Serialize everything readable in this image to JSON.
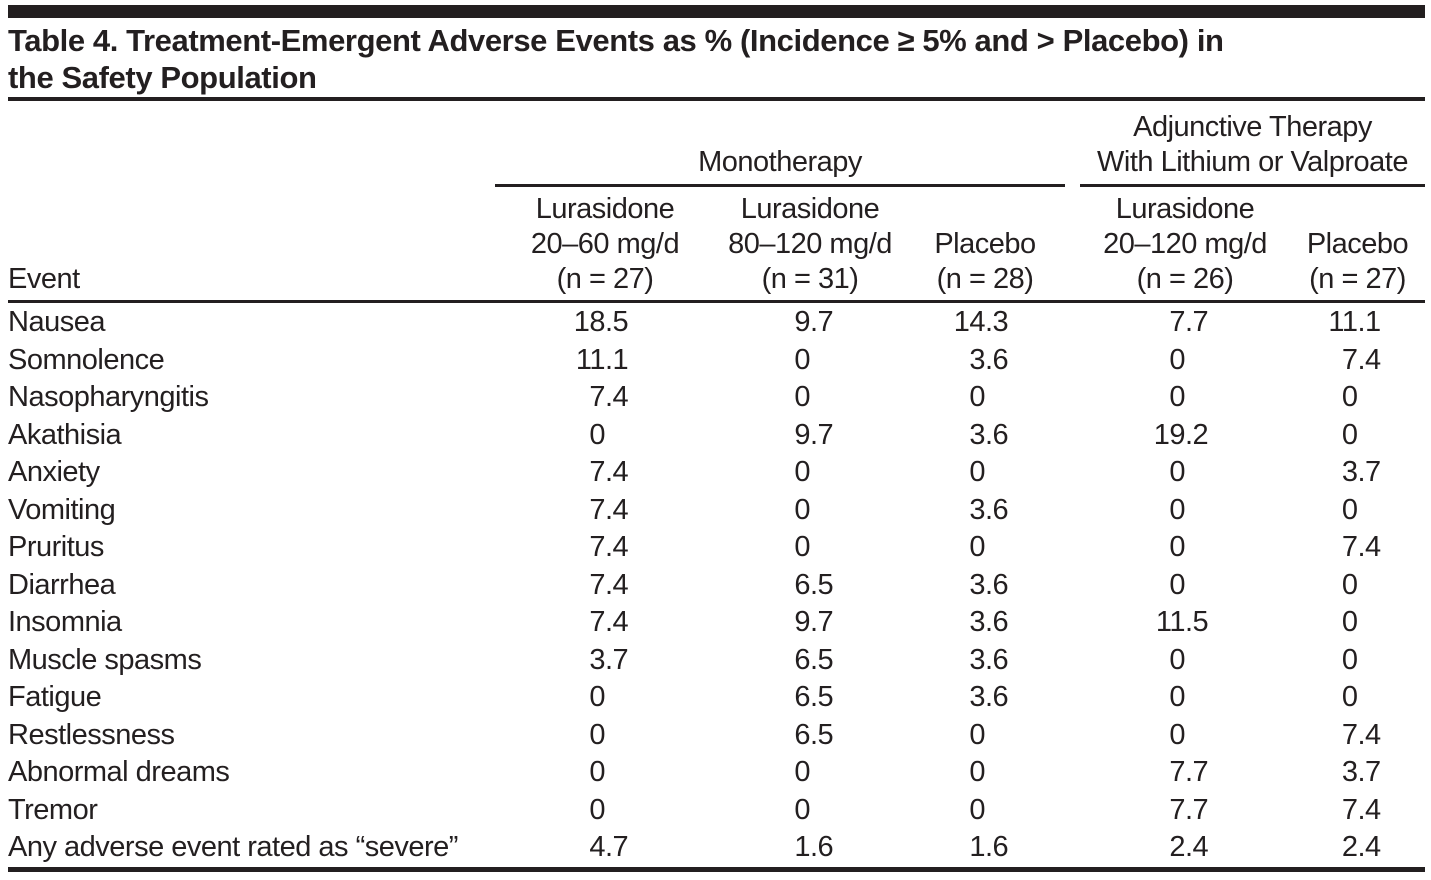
{
  "table": {
    "title_line1": "Table 4. Treatment-Emergent Adverse Events as % (Incidence ≥ 5% and > Placebo) in",
    "title_line2": "the Safety Population",
    "event_header": "Event",
    "groups": [
      {
        "label_lines": [
          "Monotherapy"
        ]
      },
      {
        "label_lines": [
          "Adjunctive Therapy",
          "With Lithium or Valproate"
        ]
      }
    ],
    "columns": [
      {
        "group": 0,
        "lines": [
          "Lurasidone",
          "20–60 mg/d",
          "(n = 27)"
        ]
      },
      {
        "group": 0,
        "lines": [
          "Lurasidone",
          "80–120 mg/d",
          "(n = 31)"
        ]
      },
      {
        "group": 0,
        "lines": [
          "Placebo",
          "(n = 28)"
        ]
      },
      {
        "group": 1,
        "lines": [
          "Lurasidone",
          "20–120 mg/d",
          "(n = 26)"
        ]
      },
      {
        "group": 1,
        "lines": [
          "Placebo",
          "(n = 27)"
        ]
      }
    ],
    "rows": [
      {
        "event": "Nausea",
        "values": [
          "18.5",
          "9.7",
          "14.3",
          "7.7",
          "11.1"
        ]
      },
      {
        "event": "Somnolence",
        "values": [
          "11.1",
          "0",
          "3.6",
          "0",
          "7.4"
        ]
      },
      {
        "event": "Nasopharyngitis",
        "values": [
          "7.4",
          "0",
          "0",
          "0",
          "0"
        ]
      },
      {
        "event": "Akathisia",
        "values": [
          "0",
          "9.7",
          "3.6",
          "19.2",
          "0"
        ]
      },
      {
        "event": "Anxiety",
        "values": [
          "7.4",
          "0",
          "0",
          "0",
          "3.7"
        ]
      },
      {
        "event": "Vomiting",
        "values": [
          "7.4",
          "0",
          "3.6",
          "0",
          "0"
        ]
      },
      {
        "event": "Pruritus",
        "values": [
          "7.4",
          "0",
          "0",
          "0",
          "7.4"
        ]
      },
      {
        "event": "Diarrhea",
        "values": [
          "7.4",
          "6.5",
          "3.6",
          "0",
          "0"
        ]
      },
      {
        "event": "Insomnia",
        "values": [
          "7.4",
          "9.7",
          "3.6",
          "11.5",
          "0"
        ]
      },
      {
        "event": "Muscle spasms",
        "values": [
          "3.7",
          "6.5",
          "3.6",
          "0",
          "0"
        ]
      },
      {
        "event": "Fatigue",
        "values": [
          "0",
          "6.5",
          "3.6",
          "0",
          "0"
        ]
      },
      {
        "event": "Restlessness",
        "values": [
          "0",
          "6.5",
          "0",
          "0",
          "7.4"
        ]
      },
      {
        "event": "Abnormal dreams",
        "values": [
          "0",
          "0",
          "0",
          "7.7",
          "3.7"
        ]
      },
      {
        "event": "Tremor",
        "values": [
          "0",
          "0",
          "0",
          "7.7",
          "7.4"
        ]
      },
      {
        "event": "Any adverse event rated as “severe”",
        "values": [
          "4.7",
          "1.6",
          "1.6",
          "2.4",
          "2.4"
        ]
      }
    ],
    "colors": {
      "ink": "#231f20",
      "background": "#ffffff"
    }
  }
}
